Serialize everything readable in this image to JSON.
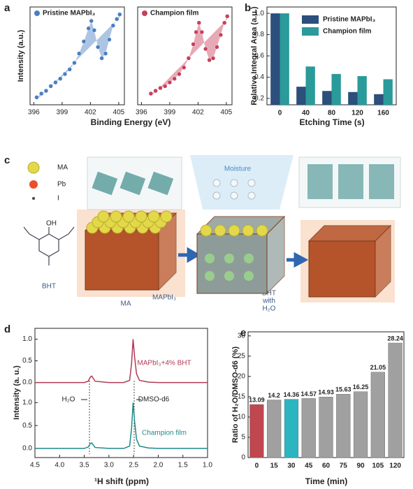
{
  "chart_data": [
    {
      "type": "scatter",
      "panel_label": "a",
      "xlabel": "Binding Energy (eV)",
      "ylabel": "Intensity (a.u.)",
      "xlim": [
        395.6,
        405.6
      ],
      "xticks": [
        396,
        399,
        402,
        405
      ],
      "ylim": [
        0,
        1.05
      ],
      "x": [
        396.3,
        396.8,
        397.3,
        397.8,
        398.3,
        398.8,
        399.3,
        399.8,
        400.3,
        400.8,
        401.3,
        401.8,
        402.1,
        402.4,
        402.8,
        403.2,
        403.6,
        404,
        404.4,
        404.8,
        405.1
      ],
      "series": [
        {
          "name": "Pristine MAPbI₃",
          "color": "#4a7fc1",
          "values": [
            0.08,
            0.12,
            0.15,
            0.2,
            0.24,
            0.28,
            0.33,
            0.38,
            0.45,
            0.55,
            0.68,
            0.82,
            0.9,
            0.8,
            0.62,
            0.5,
            0.55,
            0.7,
            0.85,
            0.92,
            0.97
          ]
        }
      ]
    },
    {
      "type": "scatter",
      "xlim": [
        395.6,
        405.6
      ],
      "xticks": [
        396,
        399,
        402,
        405
      ],
      "ylim": [
        0,
        1.05
      ],
      "x": [
        397,
        397.5,
        398,
        398.5,
        399,
        399.5,
        400,
        400.5,
        401,
        401.5,
        401.8,
        402.1,
        402.4,
        402.8,
        403.2,
        403.6,
        404,
        404.4,
        404.8,
        405.1
      ],
      "series": [
        {
          "name": "Champion film",
          "color": "#c8405a",
          "values": [
            0.12,
            0.15,
            0.18,
            0.2,
            0.24,
            0.28,
            0.33,
            0.4,
            0.5,
            0.65,
            0.78,
            0.88,
            0.78,
            0.6,
            0.48,
            0.5,
            0.62,
            0.75,
            0.88,
            0.95
          ]
        }
      ]
    },
    {
      "type": "bar",
      "panel_label": "b",
      "xlabel": "Etching Time (s)",
      "ylabel": "Relative Integral Area (a.u.)",
      "categories": [
        "0",
        "40",
        "80",
        "120",
        "160"
      ],
      "ylim": [
        0.14,
        1.06
      ],
      "yticks": [
        0.2,
        0.4,
        0.6,
        0.8,
        {
          "value": 1,
          "label": "1.0"
        }
      ],
      "series": [
        {
          "name": "Pristine MAPbI₃",
          "color": "#2c4f7c",
          "values": [
            1.0,
            0.31,
            0.27,
            0.26,
            0.24
          ]
        },
        {
          "name": "Champion film",
          "color": "#2a9a9a",
          "values": [
            1.0,
            0.5,
            0.43,
            0.41,
            0.38
          ]
        }
      ]
    },
    {
      "type": "line",
      "panel_label": "d",
      "ylabel": "Intensity (a. u.)",
      "xlim": [
        4.5,
        1.0
      ],
      "ylim": [
        -0.2,
        1.25
      ],
      "yticks": [
        {
          "value": 0,
          "label": "0.0"
        },
        0.5,
        {
          "value": 1,
          "label": "1.0"
        }
      ],
      "annotations": [
        "H₂O",
        "DMSO-d6"
      ],
      "x": [
        4.5,
        4.0,
        3.5,
        3.42,
        3.38,
        3.35,
        3.32,
        3.28,
        3.0,
        2.7,
        2.58,
        2.54,
        2.51,
        2.48,
        2.44,
        2.38,
        2.2,
        2.0,
        1.5,
        1.0
      ],
      "series": [
        {
          "name": "MAPbI₃+4% BHT",
          "color": "#b03a55",
          "values": [
            0.0,
            0.0,
            0.0,
            0.03,
            0.12,
            0.15,
            0.1,
            0.03,
            0.0,
            0.0,
            0.05,
            0.45,
            1.0,
            0.6,
            0.2,
            0.05,
            0.01,
            0.0,
            0.0,
            0.0
          ]
        }
      ]
    },
    {
      "type": "line",
      "xlabel": "¹H shift (ppm)",
      "xlim": [
        4.5,
        1.0
      ],
      "ylim": [
        -0.2,
        1.25
      ],
      "xticks": [
        4.5,
        {
          "value": 4,
          "label": "4.0"
        },
        3.5,
        {
          "value": 3,
          "label": "3.0"
        },
        2.5,
        {
          "value": 2,
          "label": "2.0"
        },
        1.5,
        {
          "value": 1,
          "label": "1.0"
        }
      ],
      "yticks": [
        {
          "value": 0,
          "label": "0.0"
        },
        0.5,
        {
          "value": 1,
          "label": "1.0"
        }
      ],
      "x": [
        4.5,
        4.0,
        3.5,
        3.42,
        3.38,
        3.35,
        3.32,
        3.28,
        3.0,
        2.7,
        2.58,
        2.54,
        2.51,
        2.48,
        2.44,
        2.38,
        2.2,
        2.0,
        1.5,
        1.0
      ],
      "series": [
        {
          "name": "Champion film",
          "color": "#1f8a8a",
          "values": [
            0.0,
            0.0,
            0.0,
            0.03,
            0.1,
            0.12,
            0.08,
            0.02,
            0.0,
            0.0,
            0.05,
            0.45,
            1.0,
            0.6,
            0.2,
            0.05,
            0.01,
            0.0,
            0.0,
            0.0
          ]
        }
      ]
    },
    {
      "type": "bar",
      "panel_label": "e",
      "xlabel": "Time (min)",
      "ylabel": "Ratio of H₂O/DMSO-d6 (%)",
      "categories": [
        "0",
        "15",
        "30",
        "45",
        "60",
        "75",
        "90",
        "105",
        "120"
      ],
      "ylim": [
        0,
        31
      ],
      "yticks": [
        0,
        5,
        10,
        15,
        20,
        25,
        30
      ],
      "colors": [
        "#c0474f",
        "#a0a0a0",
        "#2bb5c0",
        "#a0a0a0",
        "#a0a0a0",
        "#a0a0a0",
        "#a0a0a0",
        "#a0a0a0",
        "#a0a0a0"
      ],
      "values": [
        13.09,
        14.2,
        14.36,
        14.57,
        14.93,
        15.63,
        16.25,
        21.05,
        28.24
      ]
    }
  ],
  "schematic": {
    "panel_label": "c",
    "legend": [
      "MA",
      "Pb",
      "I"
    ],
    "moisture": "Moisture",
    "labels": [
      "BHT",
      "MA",
      "MAPbI₃",
      "BHT",
      "with",
      "H₂O"
    ]
  }
}
